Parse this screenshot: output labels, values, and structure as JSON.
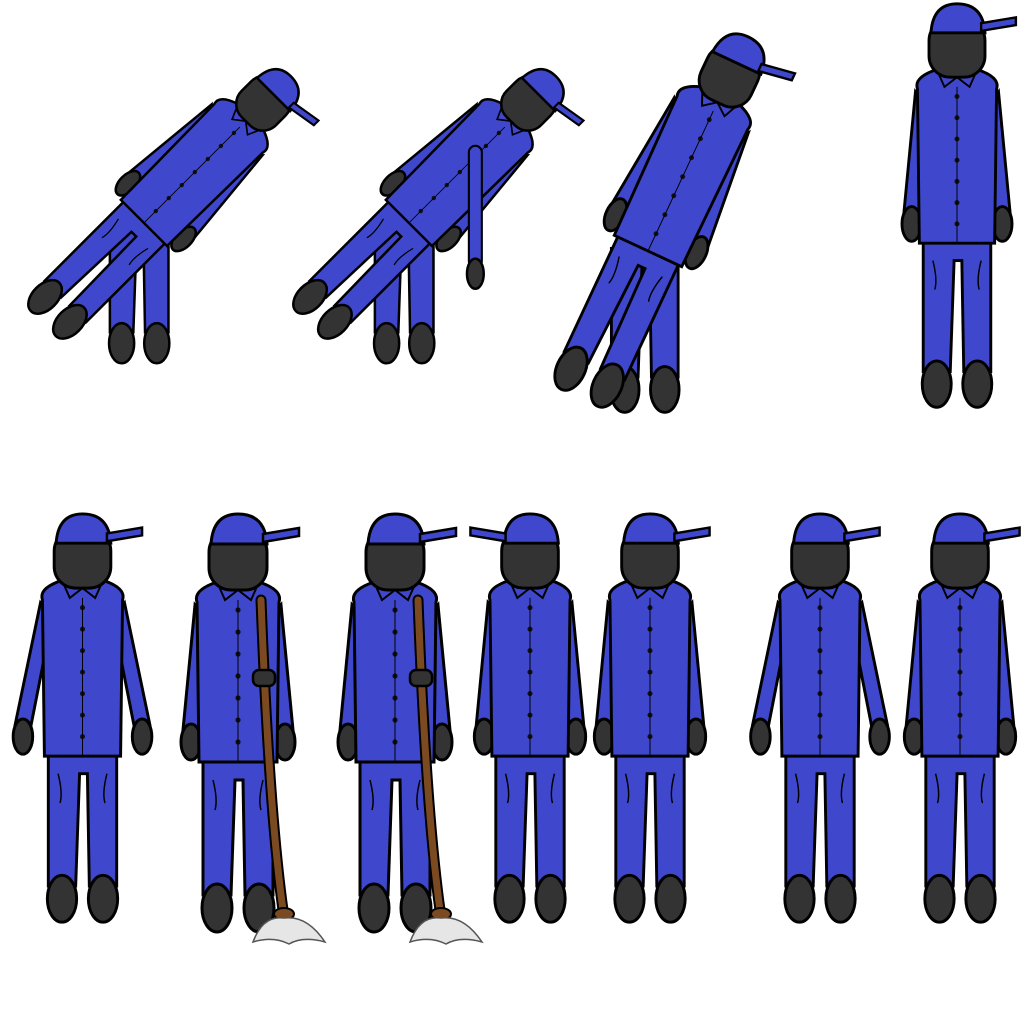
{
  "sheet": {
    "background": "#ffffff",
    "colors": {
      "uniform": "#3f48cc",
      "skin": "#333333",
      "outline": "#000000",
      "mop_handle": "#7b4a21",
      "mop_head": "#e6e6e6"
    },
    "rows": [
      {
        "name": "top-row",
        "sprites": [
          {
            "name": "janitor-bow-deep",
            "pose": "bowing",
            "lean": 45,
            "prop": "none"
          },
          {
            "name": "janitor-bow-deep-reach",
            "pose": "bowing-reaching",
            "lean": 45,
            "prop": "none"
          },
          {
            "name": "janitor-bow-half",
            "pose": "bowing",
            "lean": 25,
            "prop": "none"
          },
          {
            "name": "janitor-stand-turn",
            "pose": "standing-side",
            "lean": 0,
            "prop": "none"
          }
        ]
      },
      {
        "name": "bottom-row",
        "sprites": [
          {
            "name": "janitor-front-arms-out",
            "pose": "front",
            "prop": "none"
          },
          {
            "name": "janitor-mop-1",
            "pose": "holding-mop",
            "prop": "mop"
          },
          {
            "name": "janitor-mop-2",
            "pose": "holding-mop",
            "prop": "mop"
          },
          {
            "name": "janitor-walk-side-1",
            "pose": "walking",
            "prop": "none"
          },
          {
            "name": "janitor-front-2",
            "pose": "front",
            "prop": "none"
          },
          {
            "name": "janitor-front-arms-out-2",
            "pose": "front",
            "prop": "none"
          },
          {
            "name": "janitor-front-3",
            "pose": "front",
            "prop": "none"
          }
        ]
      }
    ]
  }
}
